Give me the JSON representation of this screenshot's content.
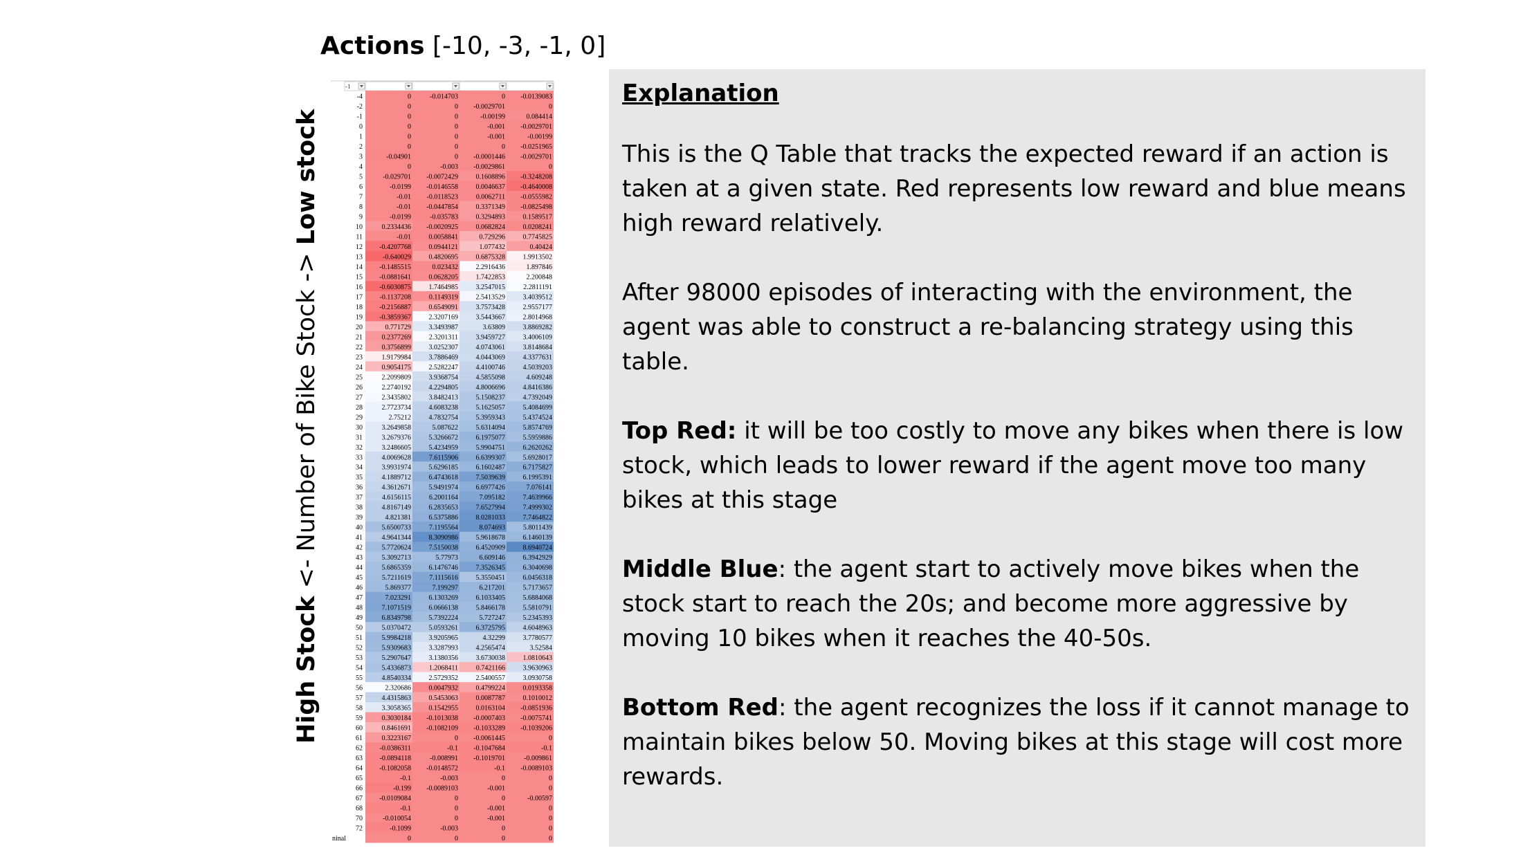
{
  "title": {
    "bold": "Actions",
    "rest": " [-10, -3, -1, 0]"
  },
  "axis_label": {
    "left": "High Stock",
    "middle": " <- Number of Bike Stock -> ",
    "right": "Low stock"
  },
  "explanation": {
    "heading": "Explanation",
    "intro": "This is the Q Table that tracks the expected reward if an action is taken at a given state. Red represents low reward and blue means high reward relatively.",
    "episodes": "After 98000 episodes of interacting with the environment, the agent was able to construct a re-balancing strategy using this table.",
    "top_red": {
      "label": "Top Red:",
      "text": " it will be too costly to move any bikes when there is low stock, which leads to lower reward if the agent move too many bikes at this stage"
    },
    "middle_blue": {
      "label": "Middle Blue",
      "text": ": the agent start to actively move bikes when the stock start to reach the 20s; and become more aggressive by moving 10 bikes when it reaches the 40-50s."
    },
    "bottom_red": {
      "label": "Bottom Red",
      "text": ": the agent recognizes the loss if it cannot manage to maintain bikes below 50. Moving bikes at this stage will cost more rewards."
    }
  },
  "colors": {
    "low": "#f8696b",
    "mid": "#fcfcff",
    "high": "#5a8ac6",
    "panel": "#e7e7e7"
  },
  "qtable": {
    "header_first": "-1",
    "rows": [
      [
        "-4",
        "0",
        "-0.014703",
        "0",
        "-0.0139083"
      ],
      [
        "-2",
        "0",
        "0",
        "-0.0029701",
        "0"
      ],
      [
        "-1",
        "0",
        "0",
        "-0.00199",
        "0.084414"
      ],
      [
        "0",
        "0",
        "0",
        "-0.001",
        "-0.0029701"
      ],
      [
        "1",
        "0",
        "0",
        "-0.001",
        "-0.00199"
      ],
      [
        "2",
        "0",
        "0",
        "0",
        "-0.0251965"
      ],
      [
        "3",
        "-0.04901",
        "0",
        "-0.0001446",
        "-0.0029701"
      ],
      [
        "4",
        "0",
        "-0.003",
        "-0.0029861",
        "0"
      ],
      [
        "5",
        "-0.029701",
        "-0.0072429",
        "0.1608896",
        "-0.3248208"
      ],
      [
        "6",
        "-0.0199",
        "-0.0146558",
        "0.0046637",
        "-0.4640008"
      ],
      [
        "7",
        "-0.01",
        "-0.0118523",
        "0.0062711",
        "-0.0555982"
      ],
      [
        "8",
        "-0.01",
        "-0.0447854",
        "0.3371349",
        "-0.0825498"
      ],
      [
        "9",
        "-0.0199",
        "-0.035783",
        "0.3294893",
        "0.1589517"
      ],
      [
        "10",
        "0.2334436",
        "-0.0020925",
        "0.0682824",
        "0.0208241"
      ],
      [
        "11",
        "-0.01",
        "0.0058841",
        "0.729296",
        "0.7745825"
      ],
      [
        "12",
        "-0.4207768",
        "0.0944121",
        "1.077432",
        "0.40424"
      ],
      [
        "13",
        "-0.640029",
        "0.4820695",
        "0.6875328",
        "1.9913502"
      ],
      [
        "14",
        "-0.1485515",
        "0.023432",
        "2.2916436",
        "1.897846"
      ],
      [
        "15",
        "-0.0881641",
        "0.0628205",
        "1.7422853",
        "2.200848"
      ],
      [
        "16",
        "-0.6030875",
        "1.7464985",
        "3.2547015",
        "2.2811191"
      ],
      [
        "17",
        "-0.1137208",
        "0.1149319",
        "2.5413529",
        "3.4039512"
      ],
      [
        "18",
        "-0.2156887",
        "0.6549091",
        "3.7573428",
        "2.9557177"
      ],
      [
        "19",
        "-0.3859367",
        "2.3207169",
        "3.5443667",
        "2.8014968"
      ],
      [
        "20",
        "0.771729",
        "3.3493987",
        "3.63809",
        "3.8869282"
      ],
      [
        "21",
        "0.2377269",
        "2.3201311",
        "3.9459727",
        "3.4006109"
      ],
      [
        "22",
        "0.3756899",
        "3.0252307",
        "4.0743061",
        "3.8148684"
      ],
      [
        "23",
        "1.9179984",
        "3.7886469",
        "4.0443069",
        "4.3377631"
      ],
      [
        "24",
        "0.9054175",
        "2.5282247",
        "4.4100746",
        "4.5039203"
      ],
      [
        "25",
        "2.2099809",
        "3.9368754",
        "4.5855098",
        "4.609248"
      ],
      [
        "26",
        "2.2740192",
        "4.2294805",
        "4.8006696",
        "4.8416386"
      ],
      [
        "27",
        "2.3435802",
        "3.8482413",
        "5.1508237",
        "4.7392049"
      ],
      [
        "28",
        "2.7723734",
        "4.6083238",
        "5.1625057",
        "5.4084699"
      ],
      [
        "29",
        "2.75212",
        "4.7832754",
        "5.3959343",
        "5.4374524"
      ],
      [
        "30",
        "3.2649858",
        "5.087622",
        "5.6314094",
        "5.8574769"
      ],
      [
        "31",
        "3.2679376",
        "5.3266672",
        "6.1975077",
        "5.5959886"
      ],
      [
        "32",
        "3.2486605",
        "5.4234959",
        "5.9904751",
        "6.2620262"
      ],
      [
        "33",
        "4.0069628",
        "7.6115906",
        "6.6399307",
        "5.6928017"
      ],
      [
        "34",
        "3.9931974",
        "5.6296185",
        "6.1602487",
        "6.7175827"
      ],
      [
        "35",
        "4.1889712",
        "6.4743618",
        "7.5039639",
        "6.1995391"
      ],
      [
        "36",
        "4.3612671",
        "5.9491974",
        "6.6977426",
        "7.076141"
      ],
      [
        "37",
        "4.6156115",
        "6.2001164",
        "7.095182",
        "7.4639966"
      ],
      [
        "38",
        "4.8167149",
        "6.2835653",
        "7.6527994",
        "7.4999302"
      ],
      [
        "39",
        "4.821381",
        "6.5375886",
        "8.0281033",
        "7.7464822"
      ],
      [
        "40",
        "5.6500733",
        "7.1195564",
        "8.074693",
        "5.8011439"
      ],
      [
        "41",
        "4.9641344",
        "8.3090986",
        "5.9618678",
        "6.1460139"
      ],
      [
        "42",
        "5.7720624",
        "7.5150038",
        "6.4520909",
        "8.6940724"
      ],
      [
        "43",
        "5.3092713",
        "5.77973",
        "6.609146",
        "6.3942929"
      ],
      [
        "44",
        "5.6865359",
        "6.1476746",
        "7.3526345",
        "6.3040698"
      ],
      [
        "45",
        "5.7211619",
        "7.1115616",
        "5.3550451",
        "6.0456318"
      ],
      [
        "46",
        "5.869377",
        "7.199297",
        "6.217201",
        "5.7173657"
      ],
      [
        "47",
        "7.023291",
        "6.1303269",
        "6.1033405",
        "5.6884068"
      ],
      [
        "48",
        "7.1071519",
        "6.0666138",
        "5.8466178",
        "5.5810791"
      ],
      [
        "49",
        "6.8349798",
        "5.7392224",
        "5.727247",
        "5.2345393"
      ],
      [
        "50",
        "5.0370472",
        "5.0593261",
        "6.3725795",
        "4.6048963"
      ],
      [
        "51",
        "5.9984218",
        "3.9205965",
        "4.32299",
        "3.7780577"
      ],
      [
        "52",
        "5.9309683",
        "3.3287993",
        "4.2565474",
        "3.52584"
      ],
      [
        "53",
        "5.2907647",
        "3.1380356",
        "3.6730038",
        "1.0810643"
      ],
      [
        "54",
        "5.4336873",
        "1.2068411",
        "0.7421166",
        "3.9630963"
      ],
      [
        "55",
        "4.8540334",
        "2.5729352",
        "2.5400557",
        "3.0930758"
      ],
      [
        "56",
        "2.320686",
        "0.0047932",
        "0.4799224",
        "0.0193358"
      ],
      [
        "57",
        "4.4315863",
        "0.5453063",
        "0.0087787",
        "0.1010012"
      ],
      [
        "58",
        "3.3058365",
        "0.1542955",
        "0.0163104",
        "-0.0851936"
      ],
      [
        "59",
        "0.3030184",
        "-0.1013038",
        "-0.0007403",
        "-0.0075741"
      ],
      [
        "60",
        "0.8461691",
        "-0.1082109",
        "-0.1033289",
        "-0.1039206"
      ],
      [
        "61",
        "0.3223167",
        "0",
        "-0.0061445",
        "0"
      ],
      [
        "62",
        "-0.0386311",
        "-0.1",
        "-0.1047684",
        "-0.1"
      ],
      [
        "63",
        "-0.0894118",
        "-0.008991",
        "-0.1019701",
        "-0.009861"
      ],
      [
        "64",
        "-0.1082058",
        "-0.0148572",
        "-0.1",
        "-0.0089103"
      ],
      [
        "65",
        "-0.1",
        "-0.003",
        "0",
        "0"
      ],
      [
        "66",
        "-0.199",
        "-0.0089103",
        "-0.001",
        "0"
      ],
      [
        "67",
        "-0.0109084",
        "0",
        "0",
        "-0.00597"
      ],
      [
        "68",
        "-0.1",
        "0",
        "-0.001",
        "0"
      ],
      [
        "70",
        "-0.010054",
        "0",
        "-0.001",
        "0"
      ],
      [
        "72",
        "-0.1099",
        "-0.003",
        "0",
        "0"
      ],
      [
        "ninal",
        "0",
        "0",
        "0",
        "0"
      ]
    ]
  }
}
